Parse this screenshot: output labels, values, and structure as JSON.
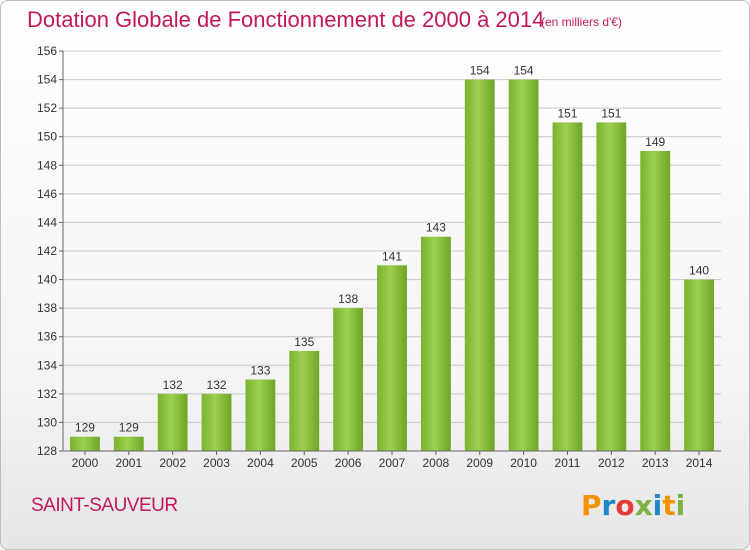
{
  "title": "Dotation Globale de Fonctionnement de 2000 à 2014",
  "unit": "(en milliers d'€)",
  "commune": "SAINT-SAUVEUR",
  "logo": {
    "letters": [
      "P",
      "r",
      "o",
      "x",
      "i",
      "t",
      "i"
    ],
    "colors": [
      "#f39200",
      "#1e88c8",
      "#e53935",
      "#7cb342",
      "#1e88c8",
      "#f39200",
      "#7cb342"
    ]
  },
  "chart_data": {
    "type": "bar",
    "title": "Dotation Globale de Fonctionnement de 2000 à 2014",
    "subtitle": "(en milliers d'€)",
    "xlabel": "",
    "ylabel": "",
    "categories": [
      "2000",
      "2001",
      "2002",
      "2003",
      "2004",
      "2005",
      "2006",
      "2007",
      "2008",
      "2009",
      "2010",
      "2011",
      "2012",
      "2013",
      "2014"
    ],
    "values": [
      129,
      129,
      132,
      132,
      133,
      135,
      138,
      141,
      143,
      154,
      154,
      151,
      151,
      149,
      140
    ],
    "ylim": [
      128,
      156
    ],
    "yticks": [
      128,
      130,
      132,
      134,
      136,
      138,
      140,
      142,
      144,
      146,
      148,
      150,
      152,
      154,
      156
    ],
    "grid": true,
    "bar_color": "#8cc63f",
    "legend": "none"
  }
}
